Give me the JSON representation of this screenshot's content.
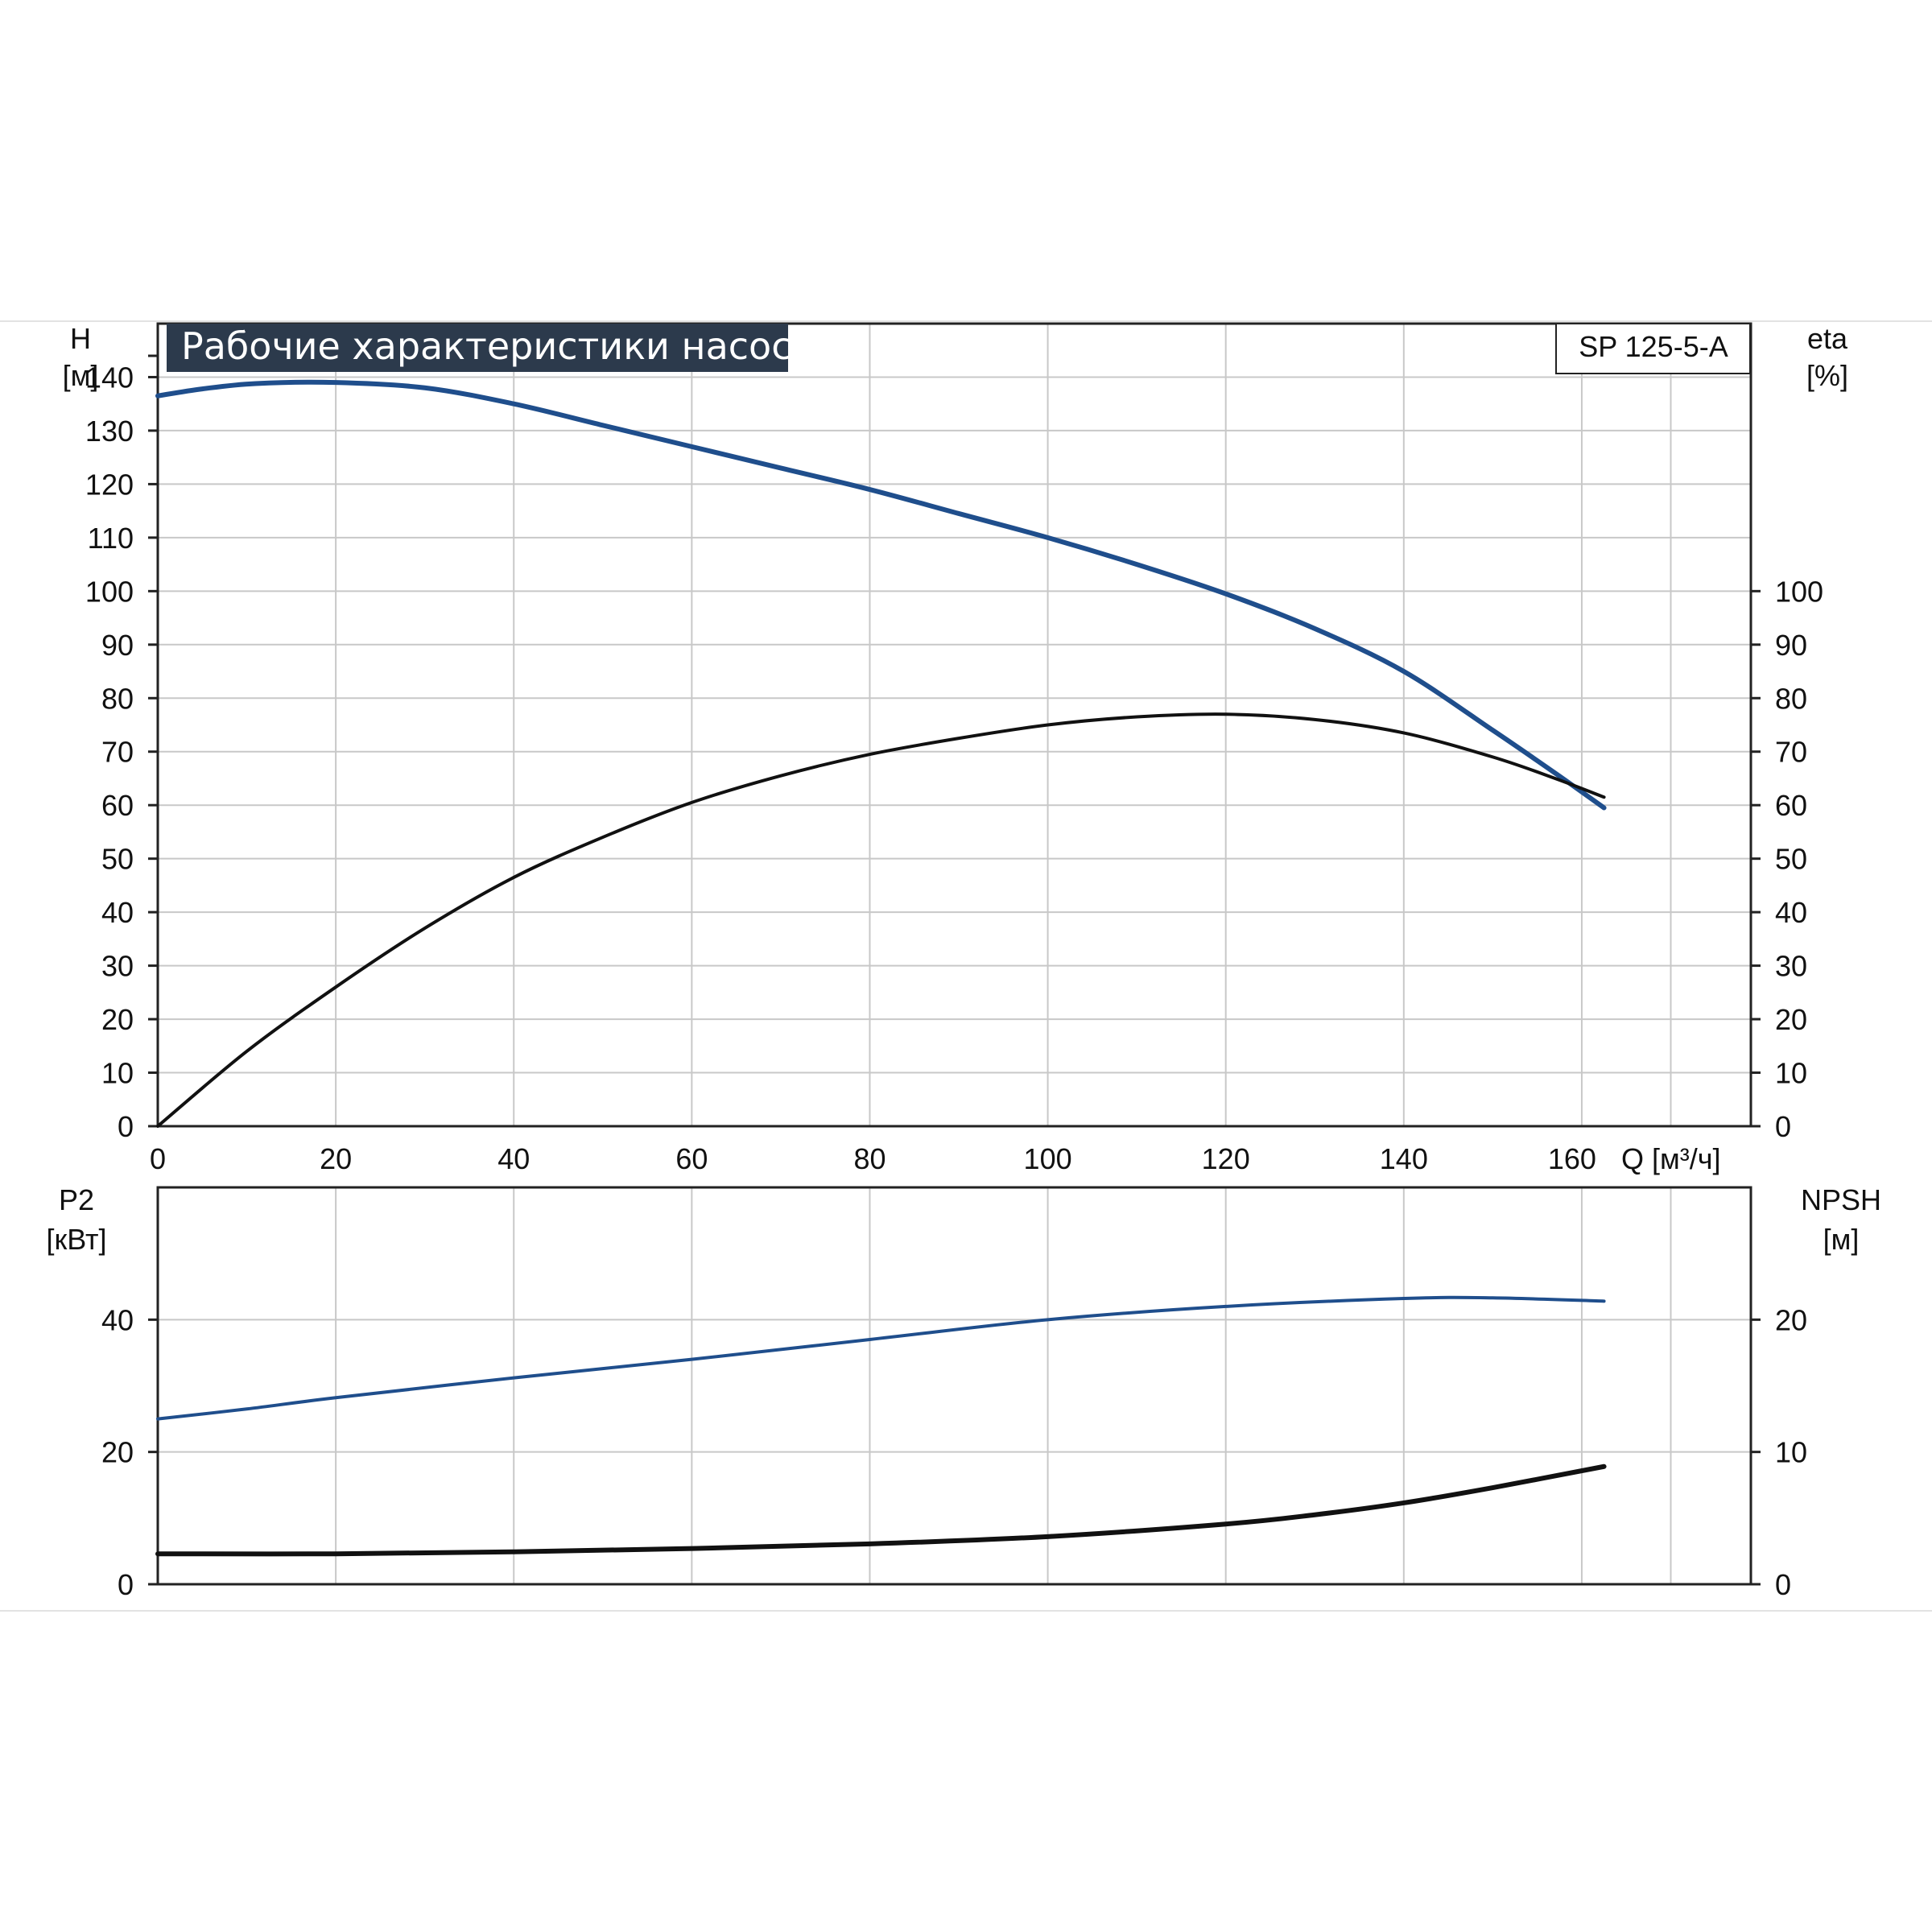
{
  "chart_data": [
    {
      "type": "line",
      "title": "Рабочие характеристики насоса",
      "model": "SP 125-5-A",
      "xlabel": "Q [м³/ч]",
      "x_unit_label": "Q [м³/ч]",
      "xticks": [
        "0",
        "20",
        "40",
        "60",
        "80",
        "100",
        "120",
        "140",
        "160"
      ],
      "xlim": [
        0,
        179
      ],
      "left_axis": {
        "name": "H",
        "unit": "[м]",
        "lim": [
          0,
          150
        ],
        "ticks": [
          "0",
          "10",
          "20",
          "30",
          "40",
          "50",
          "60",
          "70",
          "80",
          "90",
          "100",
          "110",
          "120",
          "130",
          "140"
        ]
      },
      "right_axis": {
        "name": "eta",
        "unit": "[%]",
        "lim": [
          0,
          150
        ],
        "ticks": [
          "0",
          "10",
          "20",
          "30",
          "40",
          "50",
          "60",
          "70",
          "80",
          "90",
          "100"
        ]
      },
      "grid": true,
      "series": [
        {
          "axis": "left",
          "color": "#1f4e8c",
          "points": [
            [
              0,
              136.5
            ],
            [
              5,
              137.8
            ],
            [
              11,
              138.8
            ],
            [
              20,
              139
            ],
            [
              30,
              138
            ],
            [
              40,
              135
            ],
            [
              50,
              131
            ],
            [
              60,
              127
            ],
            [
              70,
              123
            ],
            [
              80,
              119
            ],
            [
              90,
              114.5
            ],
            [
              100,
              110
            ],
            [
              110,
              105
            ],
            [
              120,
              99.5
            ],
            [
              130,
              93
            ],
            [
              140,
              85
            ],
            [
              150,
              74
            ],
            [
              157,
              66
            ],
            [
              162.5,
              59.5
            ]
          ]
        },
        {
          "axis": "right",
          "color": "#111111",
          "points": [
            [
              0,
              0
            ],
            [
              10,
              14
            ],
            [
              20,
              26
            ],
            [
              30,
              37
            ],
            [
              40,
              46.5
            ],
            [
              50,
              54
            ],
            [
              60,
              60.5
            ],
            [
              70,
              65.5
            ],
            [
              80,
              69.5
            ],
            [
              90,
              72.5
            ],
            [
              100,
              75
            ],
            [
              110,
              76.5
            ],
            [
              120,
              77
            ],
            [
              130,
              76
            ],
            [
              140,
              73.5
            ],
            [
              150,
              69
            ],
            [
              157,
              65
            ],
            [
              162.5,
              61.5
            ]
          ]
        }
      ]
    },
    {
      "type": "line",
      "xlim": [
        0,
        179
      ],
      "left_axis": {
        "name": "P2",
        "unit": "[кВт]",
        "lim": [
          0,
          60
        ],
        "ticks": [
          "0",
          "20",
          "40"
        ]
      },
      "right_axis": {
        "name": "NPSH",
        "unit": "[м]",
        "lim": [
          0,
          30
        ],
        "ticks": [
          "0",
          "10",
          "20"
        ]
      },
      "grid": true,
      "series": [
        {
          "axis": "left",
          "color": "#1f4e8c",
          "points": [
            [
              0,
              25
            ],
            [
              10,
              26.5
            ],
            [
              20,
              28.2
            ],
            [
              40,
              31.2
            ],
            [
              60,
              34
            ],
            [
              80,
              37
            ],
            [
              100,
              40
            ],
            [
              120,
              42
            ],
            [
              140,
              43.2
            ],
            [
              150,
              43.3
            ],
            [
              162.5,
              42.8
            ]
          ]
        },
        {
          "axis": "left",
          "color": "#111111",
          "points": [
            [
              0,
              4.6
            ],
            [
              20,
              4.6
            ],
            [
              40,
              4.9
            ],
            [
              60,
              5.4
            ],
            [
              80,
              6.1
            ],
            [
              100,
              7.2
            ],
            [
              120,
              9.1
            ],
            [
              130,
              10.5
            ],
            [
              140,
              12.3
            ],
            [
              150,
              14.6
            ],
            [
              162.5,
              17.8
            ]
          ]
        }
      ]
    }
  ]
}
